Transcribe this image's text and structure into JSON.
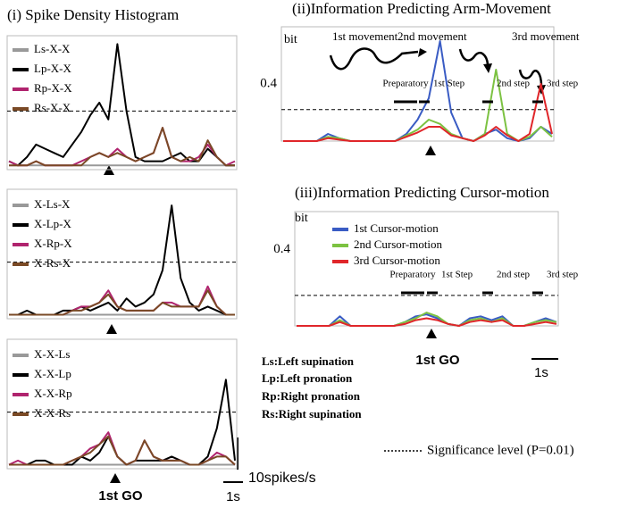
{
  "figure": {
    "title_i": "(i) Spike Density Histogram",
    "go_label": "1st GO",
    "scale_y": "10spikes/s",
    "scale_x": "1s",
    "key": [
      "Ls:Left supination",
      "Lp:Left pronation",
      "Rp:Right pronation",
      "Rs:Right supination"
    ],
    "significance": "Significance level (P=0.01)",
    "panels": [
      {
        "ylim": [
          0,
          32
        ],
        "threshold": 14,
        "series": [
          {
            "name": "Ls-X-X",
            "color": "#999999",
            "values": [
              1,
              1,
              1,
              1,
              1,
              1,
              1,
              1,
              1,
              1,
              1,
              1,
              1,
              1,
              1,
              1,
              1,
              1,
              1,
              1,
              1,
              1,
              1,
              1,
              1,
              1
            ]
          },
          {
            "name": "Lp-X-X",
            "color": "#000000",
            "values": [
              2,
              1,
              3,
              6,
              5,
              4,
              3,
              6,
              9,
              13,
              16,
              12,
              30,
              14,
              3,
              2,
              2,
              2,
              3,
              4,
              2,
              2,
              5,
              3,
              1,
              1
            ]
          },
          {
            "name": "Rp-X-X",
            "color": "#b0246e",
            "values": [
              2,
              1,
              1,
              2,
              1,
              1,
              1,
              1,
              2,
              3,
              4,
              3,
              5,
              3,
              2,
              3,
              4,
              10,
              3,
              2,
              2,
              3,
              6,
              3,
              1,
              2
            ]
          },
          {
            "name": "Rs-X-X",
            "color": "#7a4a26",
            "values": [
              1,
              1,
              1,
              2,
              1,
              1,
              1,
              1,
              1,
              3,
              4,
              3,
              4,
              3,
              2,
              3,
              4,
              10,
              3,
              2,
              3,
              2,
              7,
              3,
              1,
              1
            ]
          }
        ]
      },
      {
        "ylim": [
          0,
          32
        ],
        "threshold": 14,
        "series": [
          {
            "name": "X-Ls-X",
            "color": "#999999",
            "values": [
              1,
              1,
              1,
              1,
              1,
              1,
              1,
              1,
              1,
              1,
              1,
              1,
              1,
              1,
              1,
              1,
              1,
              1,
              1,
              1,
              1,
              1,
              1,
              1,
              1,
              1
            ]
          },
          {
            "name": "X-Lp-X",
            "color": "#000000",
            "values": [
              1,
              1,
              2,
              1,
              1,
              1,
              2,
              2,
              3,
              2,
              3,
              4,
              2,
              5,
              3,
              4,
              6,
              12,
              28,
              10,
              4,
              2,
              3,
              2,
              1,
              1
            ]
          },
          {
            "name": "X-Rp-X",
            "color": "#b0246e",
            "values": [
              1,
              1,
              1,
              1,
              1,
              1,
              1,
              2,
              3,
              3,
              4,
              7,
              3,
              2,
              2,
              2,
              2,
              4,
              4,
              3,
              3,
              3,
              8,
              3,
              1,
              1
            ]
          },
          {
            "name": "X-Rs-X",
            "color": "#7a4a26",
            "values": [
              1,
              1,
              1,
              1,
              1,
              1,
              1,
              2,
              2,
              3,
              4,
              6,
              3,
              2,
              2,
              2,
              2,
              4,
              3,
              3,
              3,
              3,
              7,
              3,
              1,
              1
            ]
          }
        ]
      },
      {
        "ylim": [
          0,
          32
        ],
        "threshold": 14,
        "series": [
          {
            "name": "X-X-Ls",
            "color": "#999999",
            "values": [
              1,
              1,
              1,
              1,
              1,
              1,
              1,
              1,
              1,
              1,
              1,
              1,
              1,
              1,
              1,
              1,
              1,
              1,
              1,
              1,
              1,
              1,
              1,
              1,
              1,
              1
            ]
          },
          {
            "name": "X-X-Lp",
            "color": "#000000",
            "values": [
              1,
              1,
              1,
              2,
              2,
              1,
              1,
              1,
              3,
              2,
              4,
              8,
              3,
              1,
              2,
              2,
              2,
              2,
              3,
              2,
              1,
              1,
              3,
              10,
              22,
              2
            ]
          },
          {
            "name": "X-X-Rp",
            "color": "#b0246e",
            "values": [
              1,
              2,
              1,
              1,
              1,
              1,
              1,
              2,
              3,
              5,
              6,
              9,
              3,
              1,
              2,
              7,
              3,
              2,
              2,
              2,
              1,
              1,
              2,
              4,
              3,
              1
            ]
          },
          {
            "name": "X-X-Rs",
            "color": "#7a4a26",
            "values": [
              1,
              1,
              1,
              1,
              1,
              1,
              1,
              2,
              3,
              4,
              6,
              8,
              3,
              1,
              2,
              7,
              3,
              2,
              2,
              2,
              1,
              1,
              2,
              3,
              3,
              1
            ]
          }
        ]
      },
      {
        "title": "(ii)Information Predicting Arm-Movement",
        "y_unit": "bit",
        "ylim": [
          0,
          0.8
        ],
        "yticks": [
          0.4
        ],
        "threshold": 0.22,
        "annotations": [
          "1st movement",
          "2nd movement",
          "3rd movement"
        ],
        "steps": [
          "Preparatory",
          "1st Step",
          "2nd step",
          "3rd step"
        ],
        "series": [
          {
            "color": "#3a5cc4",
            "values": [
              0,
              0,
              0,
              0,
              0.05,
              0.02,
              0,
              0,
              0,
              0,
              0,
              0.05,
              0.15,
              0.3,
              0.7,
              0.2,
              0.02,
              0,
              0.05,
              0.08,
              0.02,
              0,
              0.02,
              0.1,
              0.05
            ]
          },
          {
            "color": "#7cc242",
            "values": [
              0,
              0,
              0,
              0,
              0.03,
              0.02,
              0,
              0,
              0,
              0,
              0,
              0.04,
              0.08,
              0.15,
              0.12,
              0.05,
              0.02,
              0,
              0.05,
              0.5,
              0.05,
              0,
              0.03,
              0.1,
              0.03
            ]
          },
          {
            "color": "#e0262a",
            "values": [
              0,
              0,
              0,
              0,
              0.02,
              0.01,
              0,
              0,
              0,
              0,
              0,
              0.03,
              0.06,
              0.1,
              0.1,
              0.04,
              0.02,
              0,
              0.04,
              0.1,
              0.04,
              0,
              0.05,
              0.4,
              0.05
            ]
          }
        ]
      },
      {
        "title": "(iii)Information Predicting Cursor-motion",
        "y_unit": "bit",
        "ylim": [
          0,
          0.6
        ],
        "yticks": [
          0.4
        ],
        "threshold": 0.16,
        "steps": [
          "Preparatory",
          "1st Step",
          "2nd step",
          "3rd step"
        ],
        "series": [
          {
            "name": "1st Cursor-motion",
            "color": "#3a5cc4",
            "values": [
              0,
              0,
              0,
              0,
              0.05,
              0,
              0,
              0,
              0,
              0,
              0.02,
              0.05,
              0.06,
              0.04,
              0.01,
              0,
              0.04,
              0.05,
              0.03,
              0.05,
              0,
              0,
              0.02,
              0.04,
              0.02
            ]
          },
          {
            "name": "2nd Cursor-motion",
            "color": "#7cc242",
            "values": [
              0,
              0,
              0,
              0,
              0.03,
              0,
              0,
              0,
              0,
              0,
              0.02,
              0.04,
              0.07,
              0.05,
              0.01,
              0,
              0.03,
              0.04,
              0.02,
              0.04,
              0,
              0,
              0.02,
              0.03,
              0.02
            ]
          },
          {
            "name": "3rd Cursor-motion",
            "color": "#e0262a",
            "values": [
              0,
              0,
              0,
              0,
              0.02,
              0,
              0,
              0,
              0,
              0,
              0.01,
              0.03,
              0.04,
              0.03,
              0.01,
              0,
              0.02,
              0.03,
              0.02,
              0.03,
              0,
              0,
              0.01,
              0.02,
              0.01
            ]
          }
        ]
      }
    ]
  }
}
